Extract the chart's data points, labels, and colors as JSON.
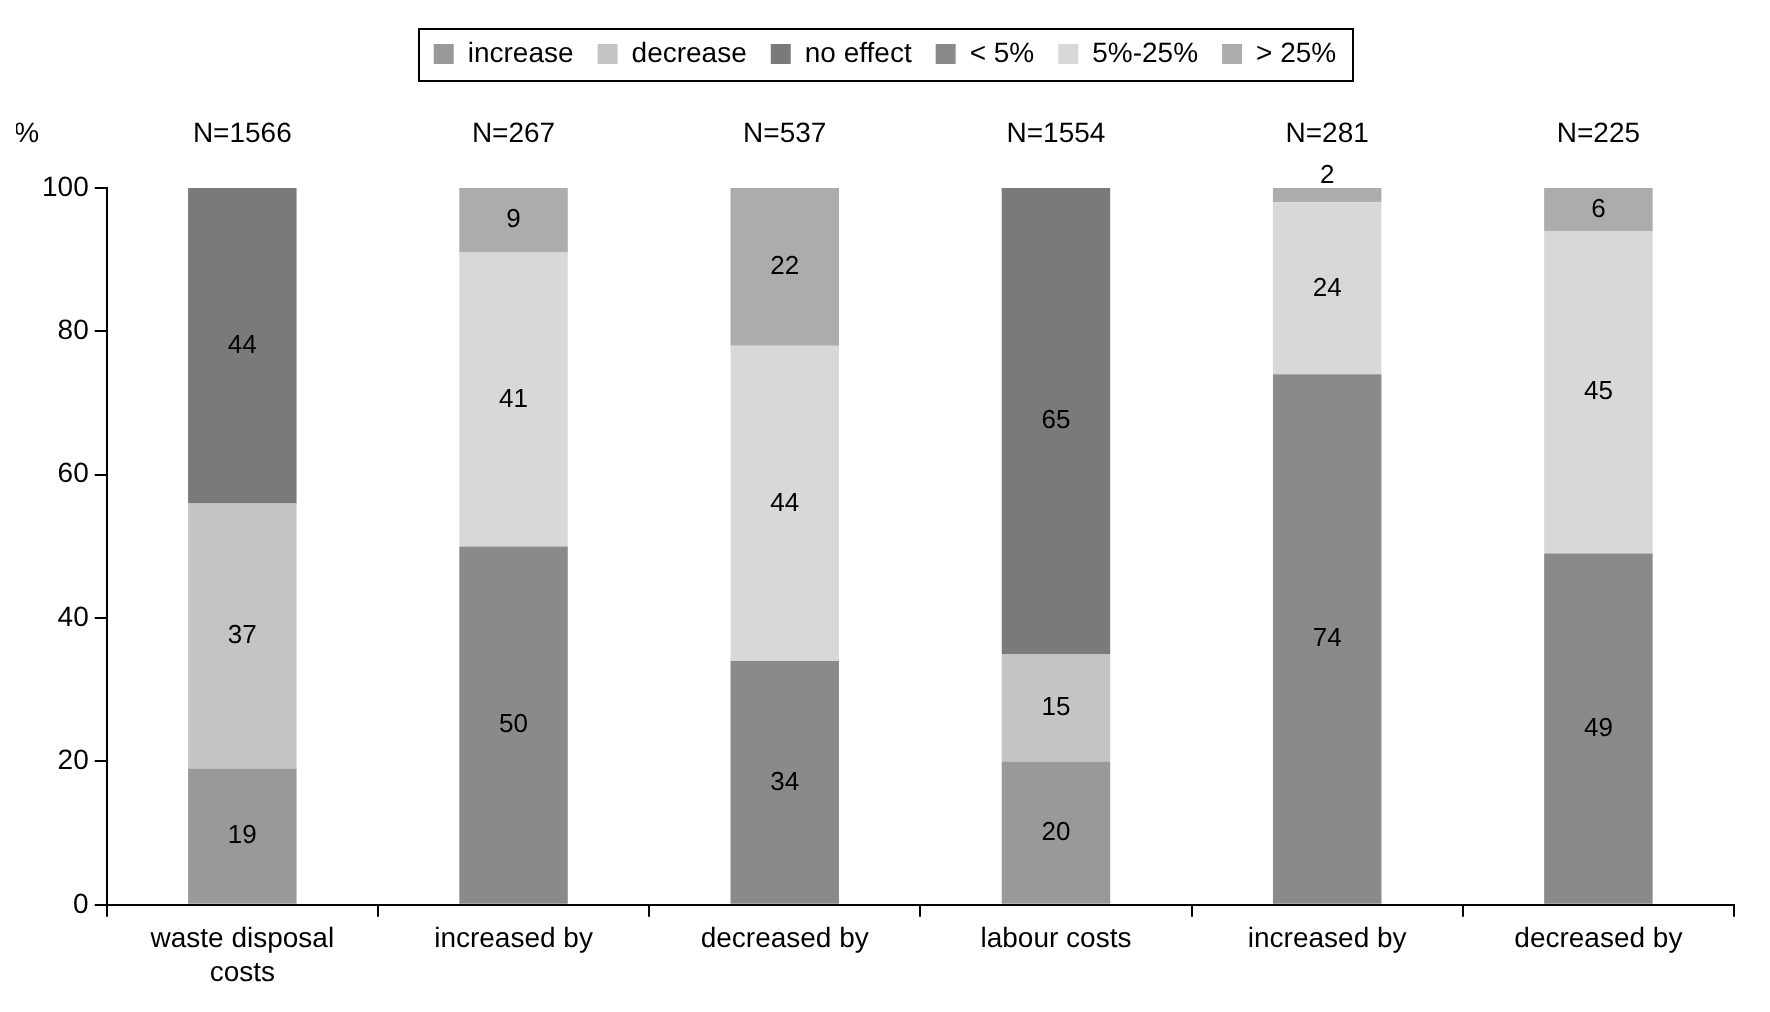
{
  "chart_data": {
    "type": "bar",
    "stacked": true,
    "ylabel": "%",
    "categories": [
      "waste disposal costs",
      "increased by",
      "decreased by",
      "labour costs",
      "increased by",
      "decreased by"
    ],
    "series": [
      {
        "name": "increase",
        "color": "#999999",
        "values": [
          19,
          null,
          null,
          20,
          null,
          null
        ]
      },
      {
        "name": "decrease",
        "color": "#c4c4c4",
        "values": [
          37,
          null,
          null,
          15,
          null,
          null
        ]
      },
      {
        "name": "no effect",
        "color": "#7a7a7a",
        "values": [
          44,
          null,
          null,
          65,
          null,
          null
        ]
      },
      {
        "name": "< 5%",
        "color": "#8a8a8a",
        "values": [
          null,
          50,
          34,
          null,
          74,
          49
        ]
      },
      {
        "name": "5%-25%",
        "color": "#d8d8d8",
        "values": [
          null,
          41,
          44,
          null,
          24,
          45
        ]
      },
      {
        "name": "> 25%",
        "color": "#acacac",
        "values": [
          null,
          9,
          22,
          null,
          2,
          6
        ]
      }
    ],
    "ylim": [
      0,
      100
    ],
    "yticks": [
      0,
      20,
      40,
      60,
      80,
      100
    ],
    "grid": false,
    "legend": "top",
    "data_labels": true,
    "annotations": [
      "N=1566",
      "N=267",
      "N=537",
      "N=1554",
      "N=281",
      "N=225"
    ]
  }
}
